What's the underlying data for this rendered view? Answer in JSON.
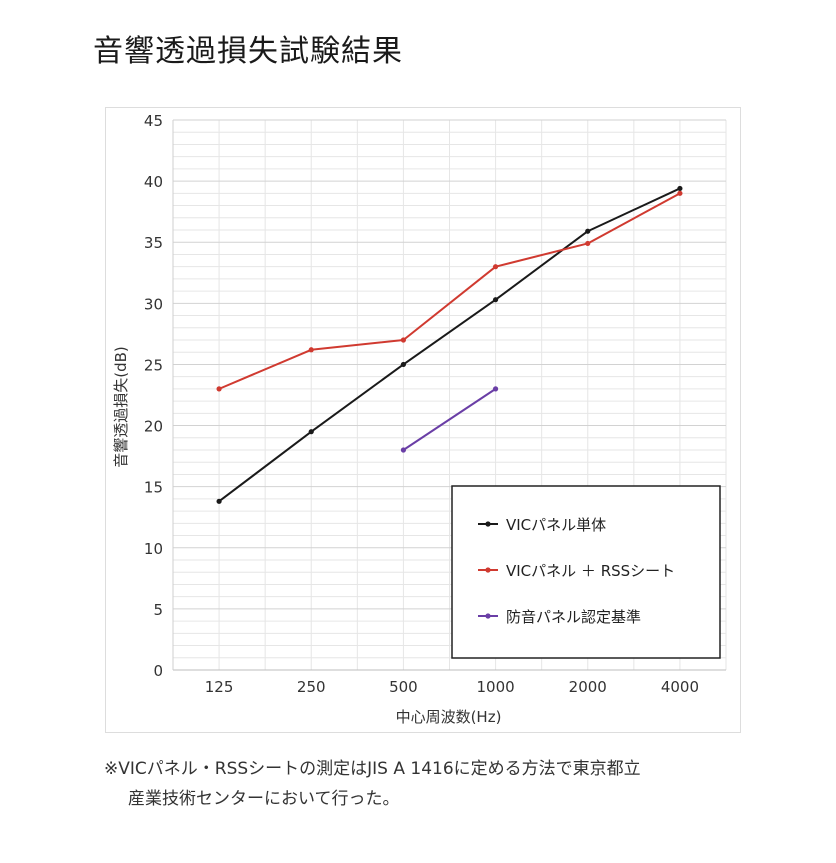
{
  "page": {
    "title": "音響透過損失試験結果"
  },
  "chart_data": {
    "type": "line",
    "title": "",
    "xlabel": "中心周波数(Hz)",
    "ylabel": "音響透過損失(dB)",
    "categories": [
      "125",
      "250",
      "500",
      "1000",
      "2000",
      "4000"
    ],
    "ylim": [
      0,
      45
    ],
    "yticks": [
      0,
      5,
      10,
      15,
      20,
      25,
      30,
      35,
      40,
      45
    ],
    "grid": true,
    "legend_position": "bottom-right",
    "series": [
      {
        "name": "VICパネル単体",
        "color": "#1a1a1a",
        "values": [
          13.8,
          19.5,
          25.0,
          30.3,
          35.9,
          39.4
        ]
      },
      {
        "name": "VICパネル ＋ RSSシート",
        "color": "#d03a30",
        "values": [
          23.0,
          26.2,
          27.0,
          33.0,
          34.9,
          39.0
        ]
      },
      {
        "name": "防音パネル認定基準",
        "color": "#6a3ea6",
        "values": [
          null,
          null,
          18.0,
          23.0,
          null,
          null
        ]
      }
    ]
  },
  "footnote": {
    "line1": "※VICパネル・RSSシートの測定はJIS A 1416に定める方法で東京都立",
    "line2": "産業技術センターにおいて行った。"
  }
}
